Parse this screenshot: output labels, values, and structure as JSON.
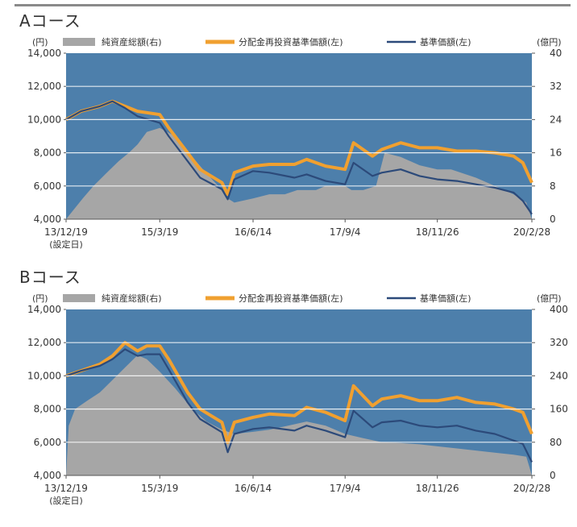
{
  "chart_data": [
    {
      "type": "line",
      "title": "Aコース",
      "left_unit": "(円)",
      "right_unit": "(億円)",
      "y_left": {
        "min": 4000,
        "max": 14000,
        "ticks": [
          "4,000",
          "6,000",
          "8,000",
          "10,000",
          "12,000",
          "14,000"
        ]
      },
      "y_right": {
        "min": 0,
        "max": 40,
        "ticks": [
          "0",
          "8",
          "16",
          "24",
          "32",
          "40"
        ]
      },
      "x_ticks": [
        "13/12/19",
        "15/3/19",
        "16/6/14",
        "17/9/4",
        "18/11/26",
        "20/2/28"
      ],
      "x_sub_label": "(設定日)",
      "legend": [
        "純資産総額(右)",
        "分配金再投資基準価額(左)",
        "基準価額(左)"
      ],
      "series": [
        {
          "name": "純資産総額(右)",
          "axis": "right",
          "kind": "area",
          "color": "#a6a6a6",
          "x": [
            "13/12/19",
            "14/1/20",
            "14/3/10",
            "14/5/1",
            "14/7/1",
            "14/9/1",
            "14/10/20",
            "14/12/1",
            "15/1/15",
            "15/3/19",
            "15/6/1",
            "15/8/24",
            "15/11/1",
            "16/1/15",
            "16/2/12",
            "16/3/15",
            "16/6/14",
            "16/9/1",
            "16/11/15",
            "17/1/15",
            "17/3/1",
            "17/4/15",
            "17/6/1",
            "17/9/4",
            "17/10/5",
            "17/12/1",
            "18/2/1",
            "18/3/15",
            "18/6/1",
            "18/9/1",
            "18/11/26",
            "19/2/1",
            "19/6/1",
            "19/9/1",
            "19/12/1",
            "20/2/1",
            "20/2/28"
          ],
          "values": [
            0,
            2,
            5,
            8,
            11,
            14,
            16,
            18,
            21,
            22,
            20,
            15,
            11,
            7,
            5,
            4,
            5,
            6,
            6,
            7,
            7,
            7,
            8,
            8,
            7,
            7,
            8,
            16,
            15,
            13,
            12,
            12,
            10,
            8,
            6,
            4,
            0
          ]
        },
        {
          "name": "分配金再投資基準価額(左)",
          "axis": "left",
          "kind": "line",
          "color": "#f0a030",
          "x": [
            "13/12/19",
            "14/3/1",
            "14/6/1",
            "14/8/1",
            "14/10/1",
            "14/12/1",
            "15/3/19",
            "15/5/1",
            "15/8/1",
            "15/10/1",
            "16/1/15",
            "16/2/12",
            "16/3/15",
            "16/6/14",
            "16/9/1",
            "17/1/1",
            "17/3/1",
            "17/6/1",
            "17/9/4",
            "17/10/15",
            "18/1/15",
            "18/3/1",
            "18/6/1",
            "18/9/1",
            "18/11/26",
            "19/3/1",
            "19/6/1",
            "19/9/1",
            "19/12/1",
            "20/1/15",
            "20/2/28"
          ],
          "values": [
            10000,
            10500,
            10800,
            11100,
            10800,
            10500,
            10300,
            9500,
            8000,
            7000,
            6200,
            5500,
            6800,
            7200,
            7300,
            7300,
            7600,
            7200,
            7000,
            8600,
            7800,
            8200,
            8600,
            8300,
            8300,
            8100,
            8100,
            8000,
            7800,
            7400,
            6200
          ]
        },
        {
          "name": "基準価額(左)",
          "axis": "left",
          "kind": "line",
          "color": "#2c4a7a",
          "x": [
            "13/12/19",
            "14/3/1",
            "14/6/1",
            "14/8/1",
            "14/10/1",
            "14/12/1",
            "15/3/19",
            "15/5/1",
            "15/8/1",
            "15/10/1",
            "16/1/15",
            "16/2/12",
            "16/3/15",
            "16/6/14",
            "16/9/1",
            "17/1/1",
            "17/3/1",
            "17/6/1",
            "17/9/4",
            "17/10/15",
            "18/1/15",
            "18/3/1",
            "18/6/1",
            "18/9/1",
            "18/11/26",
            "19/3/1",
            "19/6/1",
            "19/9/1",
            "19/12/1",
            "20/1/15",
            "20/2/28"
          ],
          "values": [
            10000,
            10500,
            10800,
            11100,
            10700,
            10200,
            9800,
            9000,
            7500,
            6500,
            5800,
            5200,
            6400,
            6900,
            6800,
            6500,
            6700,
            6300,
            6100,
            7400,
            6600,
            6800,
            7000,
            6600,
            6400,
            6300,
            6100,
            5900,
            5600,
            5100,
            4300
          ]
        }
      ]
    },
    {
      "type": "line",
      "title": "Bコース",
      "left_unit": "(円)",
      "right_unit": "(億円)",
      "y_left": {
        "min": 4000,
        "max": 14000,
        "ticks": [
          "4,000",
          "6,000",
          "8,000",
          "10,000",
          "12,000",
          "14,000"
        ]
      },
      "y_right": {
        "min": 0,
        "max": 400,
        "ticks": [
          "0",
          "80",
          "160",
          "240",
          "320",
          "400"
        ]
      },
      "x_ticks": [
        "13/12/19",
        "15/3/19",
        "16/6/14",
        "17/9/4",
        "18/11/26",
        "20/2/28"
      ],
      "x_sub_label": "(設定日)",
      "legend": [
        "純資産総額(右)",
        "分配金再投資基準価額(左)",
        "基準価額(左)"
      ],
      "series": [
        {
          "name": "純資産総額(右)",
          "axis": "right",
          "kind": "area",
          "color": "#a6a6a6",
          "x": [
            "13/12/19",
            "14/1/1",
            "14/2/1",
            "14/4/1",
            "14/6/1",
            "14/8/1",
            "14/10/1",
            "14/12/1",
            "15/1/15",
            "15/3/19",
            "15/6/1",
            "15/8/24",
            "15/11/1",
            "16/1/15",
            "16/3/15",
            "16/6/14",
            "16/9/1",
            "16/12/1",
            "17/3/1",
            "17/6/1",
            "17/9/4",
            "17/12/1",
            "18/3/1",
            "18/6/1",
            "18/9/1",
            "18/11/26",
            "19/3/1",
            "19/6/1",
            "19/9/1",
            "19/12/1",
            "20/2/1",
            "20/2/28"
          ],
          "values": [
            0,
            120,
            160,
            180,
            200,
            230,
            260,
            290,
            280,
            250,
            210,
            160,
            130,
            110,
            100,
            105,
            110,
            120,
            130,
            120,
            100,
            90,
            80,
            78,
            75,
            70,
            65,
            60,
            55,
            50,
            45,
            0
          ]
        },
        {
          "name": "分配金再投資基準価額(左)",
          "axis": "left",
          "kind": "line",
          "color": "#f0a030",
          "x": [
            "13/12/19",
            "14/3/1",
            "14/6/1",
            "14/8/1",
            "14/10/1",
            "14/12/1",
            "15/1/15",
            "15/3/19",
            "15/5/1",
            "15/8/1",
            "15/10/1",
            "16/1/15",
            "16/2/12",
            "16/3/15",
            "16/6/14",
            "16/9/1",
            "17/1/1",
            "17/3/1",
            "17/6/1",
            "17/9/4",
            "17/10/15",
            "18/1/15",
            "18/3/1",
            "18/6/1",
            "18/9/1",
            "18/11/26",
            "19/3/1",
            "19/6/1",
            "19/9/1",
            "19/12/1",
            "20/1/15",
            "20/2/28"
          ],
          "values": [
            10000,
            10300,
            10700,
            11200,
            12000,
            11500,
            11800,
            11800,
            11000,
            9000,
            8000,
            7200,
            6000,
            7200,
            7500,
            7700,
            7600,
            8100,
            7800,
            7300,
            9400,
            8200,
            8600,
            8800,
            8500,
            8500,
            8700,
            8400,
            8300,
            8000,
            7800,
            6500
          ]
        },
        {
          "name": "基準価額(左)",
          "axis": "left",
          "kind": "line",
          "color": "#2c4a7a",
          "x": [
            "13/12/19",
            "14/3/1",
            "14/6/1",
            "14/8/1",
            "14/10/1",
            "14/12/1",
            "15/1/15",
            "15/3/19",
            "15/5/1",
            "15/8/1",
            "15/10/1",
            "16/1/15",
            "16/2/12",
            "16/3/15",
            "16/6/14",
            "16/9/1",
            "17/1/1",
            "17/3/1",
            "17/6/1",
            "17/9/4",
            "17/10/15",
            "18/1/15",
            "18/3/1",
            "18/6/1",
            "18/9/1",
            "18/11/26",
            "19/3/1",
            "19/6/1",
            "19/9/1",
            "19/12/1",
            "20/1/15",
            "20/2/28"
          ],
          "values": [
            10000,
            10300,
            10600,
            11000,
            11600,
            11200,
            11300,
            11300,
            10400,
            8400,
            7400,
            6600,
            5400,
            6500,
            6800,
            6900,
            6700,
            7000,
            6700,
            6300,
            7900,
            6900,
            7200,
            7300,
            7000,
            6900,
            7000,
            6700,
            6500,
            6100,
            5900,
            4800
          ]
        }
      ]
    }
  ]
}
